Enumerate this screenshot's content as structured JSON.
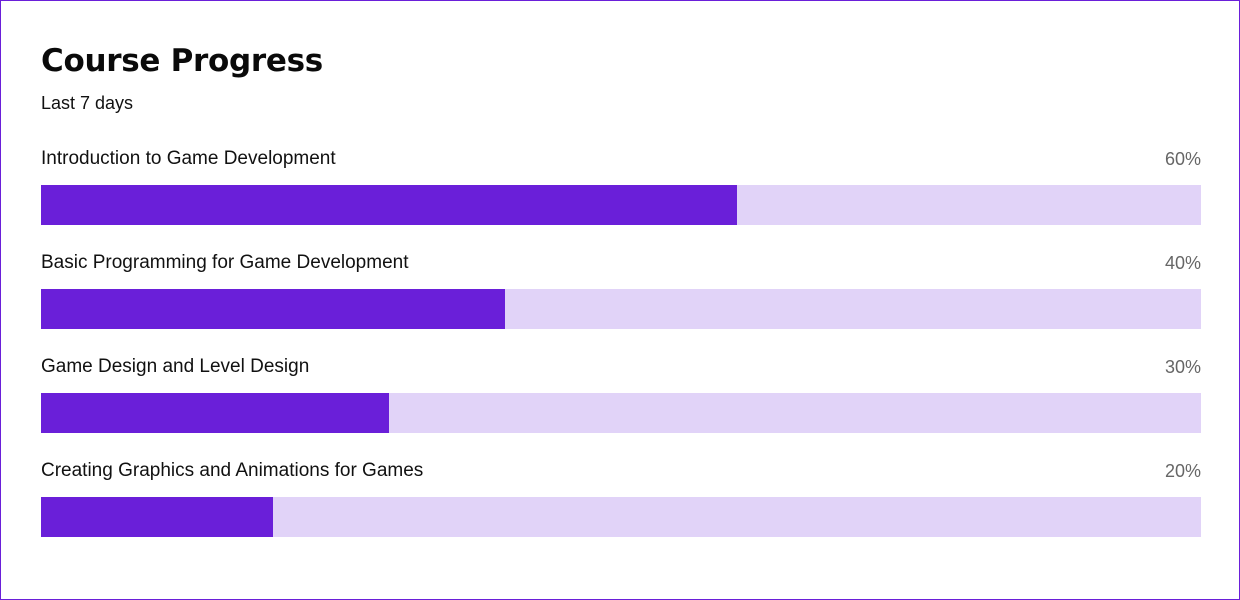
{
  "card": {
    "title": "Course Progress",
    "subtitle": "Last 7 days"
  },
  "colors": {
    "accent": "#6a1fd9",
    "track": "#e1d3f8",
    "border": "#6a1fd9",
    "percent_text": "#666666"
  },
  "courses": [
    {
      "name": "Introduction to Game Development",
      "percent_label": "60%",
      "progress": 0.6
    },
    {
      "name": "Basic Programming for Game Development",
      "percent_label": "40%",
      "progress": 0.4
    },
    {
      "name": "Game Design and Level Design",
      "percent_label": "30%",
      "progress": 0.3
    },
    {
      "name": "Creating Graphics and Animations for Games",
      "percent_label": "20%",
      "progress": 0.2
    }
  ]
}
